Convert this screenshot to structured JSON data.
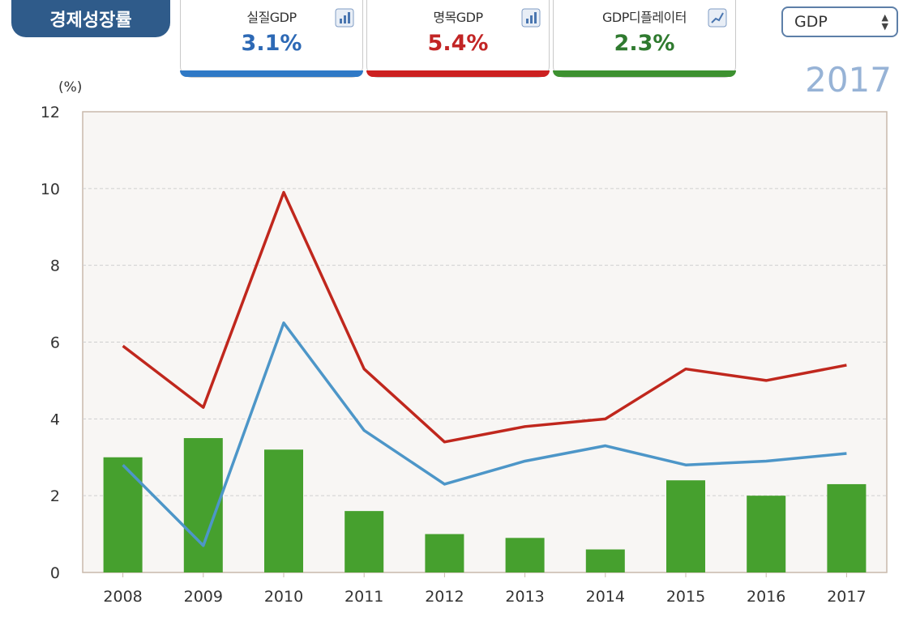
{
  "header": {
    "title": "경제성장률",
    "cards": [
      {
        "label": "실질GDP",
        "value": "3.1%",
        "color": "#2d69b5",
        "accent": "#2f79c6",
        "icon": "bar-chart-icon"
      },
      {
        "label": "명목GDP",
        "value": "5.4%",
        "color": "#c22525",
        "accent": "#cc2020",
        "icon": "bar-chart-icon"
      },
      {
        "label": "GDP디플레이터",
        "value": "2.3%",
        "color": "#2f7a2f",
        "accent": "#3d9130",
        "icon": "line-chart-icon"
      }
    ],
    "select_value": "GDP",
    "year": "2017"
  },
  "chart_data": {
    "type": "bar",
    "unit_label": "(%)",
    "categories": [
      "2008",
      "2009",
      "2010",
      "2011",
      "2012",
      "2013",
      "2014",
      "2015",
      "2016",
      "2017"
    ],
    "ylim": [
      0,
      12
    ],
    "yticks": [
      "0",
      "2",
      "4",
      "6",
      "8",
      "10",
      "12"
    ],
    "grid": true,
    "series": [
      {
        "kind": "bar",
        "color": "#46a02e",
        "values": [
          3.0,
          3.5,
          3.2,
          1.6,
          1.0,
          0.9,
          0.6,
          2.4,
          2.0,
          2.3
        ]
      },
      {
        "kind": "line",
        "color": "#c0271d",
        "values": [
          5.9,
          4.3,
          9.9,
          5.3,
          3.4,
          3.8,
          4.0,
          5.3,
          5.0,
          5.4
        ]
      },
      {
        "kind": "line",
        "color": "#4d96c8",
        "values": [
          2.8,
          0.7,
          6.5,
          3.7,
          2.3,
          2.9,
          3.3,
          2.8,
          2.9,
          3.1
        ]
      }
    ]
  }
}
